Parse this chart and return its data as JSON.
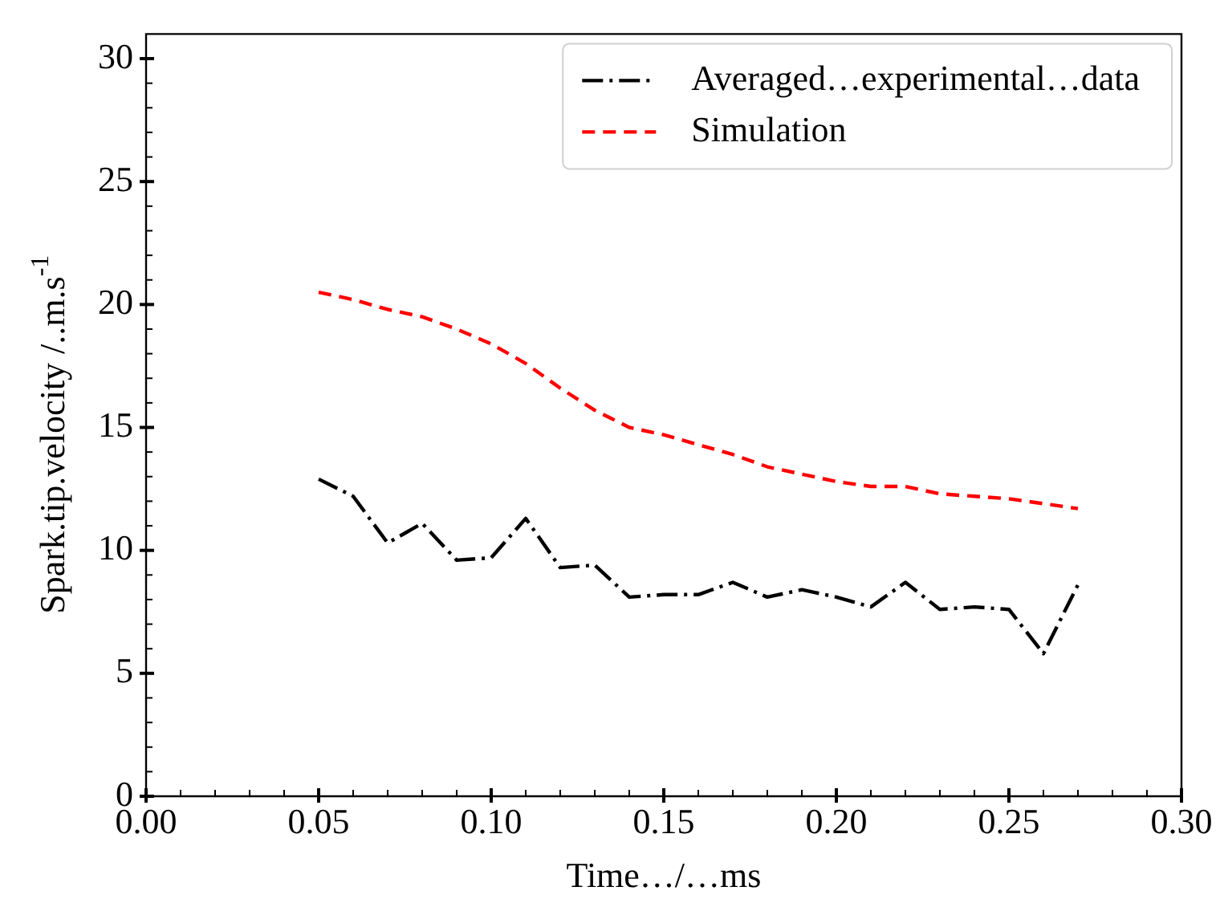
{
  "chart_data": {
    "type": "line",
    "xlabel": "Time…/…ms",
    "ylabel": "Spark.tip.velocity /..m.s$^{-1}$",
    "x": [
      0.05,
      0.06,
      0.07,
      0.08,
      0.09,
      0.1,
      0.11,
      0.12,
      0.13,
      0.14,
      0.15,
      0.16,
      0.17,
      0.18,
      0.19,
      0.2,
      0.21,
      0.22,
      0.23,
      0.24,
      0.25,
      0.26,
      0.27
    ],
    "series": [
      {
        "name": "Averaged…experimental…data",
        "color": "#000000",
        "line_style": "dashdot",
        "values": [
          12.9,
          12.2,
          10.3,
          11.1,
          9.6,
          9.7,
          11.3,
          9.3,
          9.4,
          8.1,
          8.2,
          8.2,
          8.7,
          8.1,
          8.4,
          8.1,
          7.7,
          8.7,
          7.6,
          7.7,
          7.6,
          5.8,
          8.6
        ]
      },
      {
        "name": "Simulation",
        "color": "#ff0000",
        "line_style": "dashed",
        "values": [
          20.5,
          20.2,
          19.8,
          19.5,
          19.0,
          18.4,
          17.6,
          16.6,
          15.7,
          15.0,
          14.7,
          14.3,
          13.9,
          13.4,
          13.1,
          12.8,
          12.6,
          12.6,
          12.3,
          12.2,
          12.1,
          11.9,
          11.7
        ]
      }
    ],
    "marker": "none",
    "legend": "top right",
    "grid": false,
    "xlim": [
      0,
      0.3
    ],
    "ylim": [
      0,
      31
    ],
    "xticks": [
      {
        "value": 0,
        "label": "0.00"
      },
      {
        "value": 0.01,
        "label": null
      },
      {
        "value": 0.02,
        "label": null
      },
      {
        "value": 0.03,
        "label": null
      },
      {
        "value": 0.04,
        "label": null
      },
      {
        "value": 0.05,
        "label": "0.05"
      },
      {
        "value": 0.06,
        "label": null
      },
      {
        "value": 0.07,
        "label": null
      },
      {
        "value": 0.08,
        "label": null
      },
      {
        "value": 0.09,
        "label": null
      },
      {
        "value": 0.1,
        "label": "0.10"
      },
      {
        "value": 0.11,
        "label": null
      },
      {
        "value": 0.12,
        "label": null
      },
      {
        "value": 0.13,
        "label": null
      },
      {
        "value": 0.14,
        "label": null
      },
      {
        "value": 0.15,
        "label": "0.15"
      },
      {
        "value": 0.16,
        "label": null
      },
      {
        "value": 0.17,
        "label": null
      },
      {
        "value": 0.18,
        "label": null
      },
      {
        "value": 0.19,
        "label": null
      },
      {
        "value": 0.2,
        "label": "0.20"
      },
      {
        "value": 0.21,
        "label": null
      },
      {
        "value": 0.22,
        "label": null
      },
      {
        "value": 0.23,
        "label": null
      },
      {
        "value": 0.24,
        "label": null
      },
      {
        "value": 0.25,
        "label": "0.25"
      },
      {
        "value": 0.26,
        "label": null
      },
      {
        "value": 0.27,
        "label": null
      },
      {
        "value": 0.28,
        "label": null
      },
      {
        "value": 0.29,
        "label": null
      },
      {
        "value": 0.3,
        "label": "0.30"
      }
    ],
    "yticks": [
      0,
      {
        "value": 1,
        "label": null
      },
      {
        "value": 2,
        "label": null
      },
      {
        "value": 3,
        "label": null
      },
      {
        "value": 4,
        "label": null
      },
      5,
      {
        "value": 6,
        "label": null
      },
      {
        "value": 7,
        "label": null
      },
      {
        "value": 8,
        "label": null
      },
      {
        "value": 9,
        "label": null
      },
      10,
      {
        "value": 11,
        "label": null
      },
      {
        "value": 12,
        "label": null
      },
      {
        "value": 13,
        "label": null
      },
      {
        "value": 14,
        "label": null
      },
      15,
      {
        "value": 16,
        "label": null
      },
      {
        "value": 17,
        "label": null
      },
      {
        "value": 18,
        "label": null
      },
      {
        "value": 19,
        "label": null
      },
      20,
      {
        "value": 21,
        "label": null
      },
      {
        "value": 22,
        "label": null
      },
      {
        "value": 23,
        "label": null
      },
      {
        "value": 24,
        "label": null
      },
      25,
      {
        "value": 26,
        "label": null
      },
      {
        "value": 27,
        "label": null
      },
      {
        "value": 28,
        "label": null
      },
      {
        "value": 29,
        "label": null
      },
      30
    ]
  }
}
